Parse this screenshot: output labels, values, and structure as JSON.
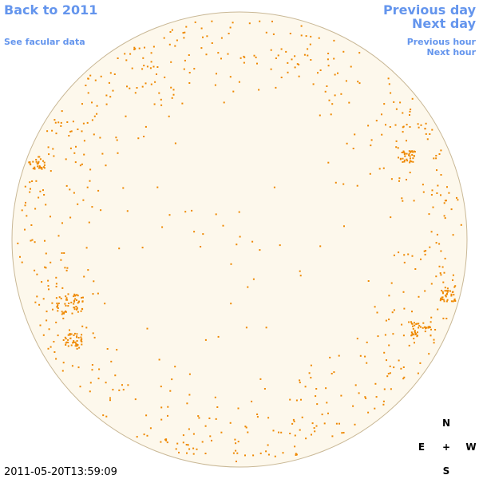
{
  "nav": {
    "back": "Back to 2011",
    "facular": "See facular data",
    "previous_day": "Previous day",
    "next_day": "Next day",
    "previous_hour": "Previous hour",
    "next_hour": "Next hour"
  },
  "compass": {
    "north": "N",
    "east": "E",
    "center": "+",
    "west": "W",
    "south": "S"
  },
  "timestamp": "2011-05-20T13:59:09"
}
